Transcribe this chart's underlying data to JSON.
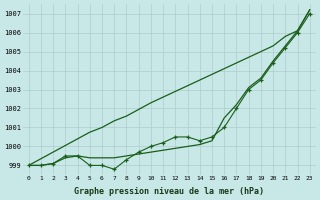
{
  "title": "Graphe pression niveau de la mer (hPa)",
  "bg_color": "#c8e8e8",
  "grid_color": "#b0cccc",
  "line_color": "#1a5e1a",
  "xlim": [
    -0.5,
    23.5
  ],
  "ylim": [
    998.5,
    1007.5
  ],
  "yticks": [
    999,
    1000,
    1001,
    1002,
    1003,
    1004,
    1005,
    1006,
    1007
  ],
  "xticks": [
    0,
    1,
    2,
    3,
    4,
    5,
    6,
    7,
    8,
    9,
    10,
    11,
    12,
    13,
    14,
    15,
    16,
    17,
    18,
    19,
    20,
    21,
    22,
    23
  ],
  "line_straight": [
    999.0,
    999.35,
    999.7,
    1000.05,
    1000.4,
    1000.75,
    1001.0,
    1001.35,
    1001.6,
    1001.95,
    1002.3,
    1002.6,
    1002.9,
    1003.2,
    1003.5,
    1003.8,
    1004.1,
    1004.4,
    1004.7,
    1005.0,
    1005.3,
    1005.8,
    1006.1,
    1007.2
  ],
  "line_steep": [
    999.0,
    999.0,
    999.1,
    999.4,
    999.5,
    999.4,
    999.4,
    999.4,
    999.5,
    999.6,
    999.7,
    999.8,
    999.9,
    1000.0,
    1000.1,
    1000.3,
    1001.5,
    1002.2,
    1003.1,
    1003.6,
    1004.5,
    1005.3,
    1006.1,
    1007.2
  ],
  "line_wavy": [
    999.0,
    999.0,
    999.1,
    999.5,
    999.5,
    999.0,
    999.0,
    998.8,
    999.3,
    999.7,
    1000.0,
    1000.2,
    1000.5,
    1000.5,
    1000.3,
    1000.5,
    1001.0,
    1002.0,
    1003.0,
    1003.5,
    1004.4,
    1005.2,
    1006.0,
    1007.0
  ]
}
